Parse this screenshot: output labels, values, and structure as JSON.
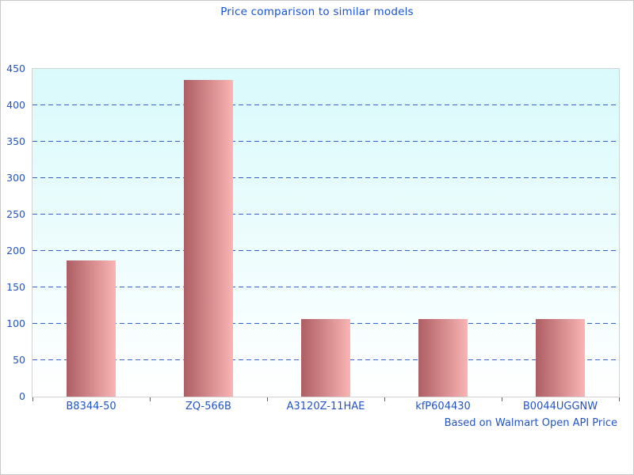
{
  "page": {
    "background": "#ffffff",
    "border_color": "#c8c8c8"
  },
  "chart_data": {
    "type": "bar",
    "title": "Price comparison to similar models",
    "footer": "Based on Walmart Open API Price",
    "categories": [
      "B8344-50",
      "ZQ-566B",
      "A3120Z-11HAE",
      "kfP604430",
      "B0044UGGNW"
    ],
    "values": [
      187,
      435,
      107,
      107,
      107
    ],
    "xlabel": "",
    "ylabel": "",
    "ylim": [
      0,
      450
    ],
    "yticks": [
      0,
      50,
      100,
      150,
      200,
      250,
      300,
      350,
      400,
      450
    ],
    "grid": "horizontal-dashed",
    "legend": "none",
    "colors": {
      "title_text": "#1553d6",
      "axis_text": "#2254c4",
      "grid_line": "#3161c9",
      "tick_mark": "#3161c9",
      "plot_border": "#d2d2d2",
      "plot_bg_top": "#d9fafb",
      "plot_bg_bottom": "#ffffff",
      "bar_gradient_left": "#ae5e63",
      "bar_gradient_right": "#f9b4b3"
    }
  }
}
